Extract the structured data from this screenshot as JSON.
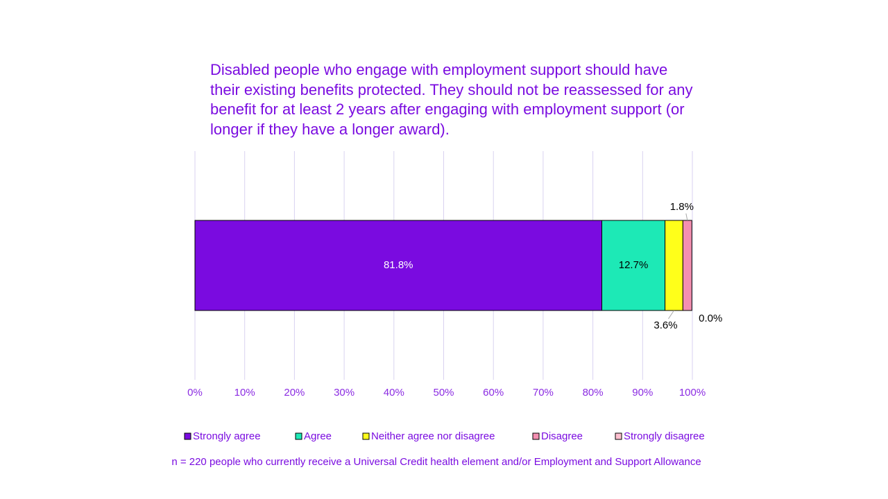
{
  "chart_data": {
    "type": "stacked-bar-horizontal",
    "title": "Disabled people who engage with employment support should have their existing benefits protected. They should not be reassessed for any benefit for at least 2 years after engaging with employment support (or longer if they have a longer award).",
    "categories": [
      null
    ],
    "series": [
      {
        "name": "Strongly agree",
        "color": "#7a0be0",
        "values": [
          81.8
        ],
        "value_labels": [
          "81.8%"
        ]
      },
      {
        "name": "Agree",
        "color": "#1de9b6",
        "values": [
          12.7
        ],
        "value_labels": [
          "12.7%"
        ]
      },
      {
        "name": "Neither agree nor disagree",
        "color": "#ffff1a",
        "values": [
          3.6
        ],
        "value_labels": [
          "3.6%"
        ]
      },
      {
        "name": "Disagree",
        "color": "#f48fb1",
        "values": [
          1.8
        ],
        "value_labels": [
          "1.8%"
        ]
      },
      {
        "name": "Strongly disagree",
        "color": "#ffbfcf",
        "values": [
          0.0
        ],
        "value_labels": [
          "0.0%"
        ]
      }
    ],
    "xlim": [
      0,
      100
    ],
    "xticks": [
      {
        "value": 0,
        "label": "0%"
      },
      {
        "value": 10,
        "label": "10%"
      },
      {
        "value": 20,
        "label": "20%"
      },
      {
        "value": 30,
        "label": "30%"
      },
      {
        "value": 40,
        "label": "40%"
      },
      {
        "value": 50,
        "label": "50%"
      },
      {
        "value": 60,
        "label": "60%"
      },
      {
        "value": 70,
        "label": "70%"
      },
      {
        "value": 80,
        "label": "80%"
      },
      {
        "value": 90,
        "label": "90%"
      },
      {
        "value": 100,
        "label": "100%"
      }
    ],
    "grid": true,
    "legend": "bottom",
    "note": "n = 220 people who currently receive a Universal Credit health element and/or Employment and Support Allowance"
  }
}
